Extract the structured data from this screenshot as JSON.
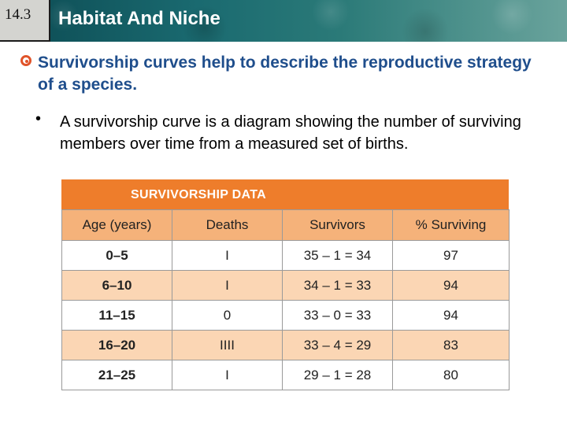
{
  "header": {
    "section_number": "14.3",
    "title": "Habitat And Niche"
  },
  "content": {
    "main_point": "Survivorship curves help to describe the reproductive strategy of a species.",
    "sub_bullet_symbol": "•",
    "sub_point": "A survivorship curve is a diagram showing the number of surviving members over time from a measured set of births."
  },
  "table": {
    "title": "SURVIVORSHIP DATA",
    "columns": [
      "Age (years)",
      "Deaths",
      "Survivors",
      "% Surviving"
    ],
    "rows": [
      [
        "0–5",
        "I",
        "35 – 1 = 34",
        "97"
      ],
      [
        "6–10",
        "I",
        "34 – 1 = 33",
        "94"
      ],
      [
        "11–15",
        "0",
        "33 – 0 = 33",
        "94"
      ],
      [
        "16–20",
        "IIII",
        "33 – 4 = 29",
        "83"
      ],
      [
        "21–25",
        "I",
        "29 – 1 = 28",
        "80"
      ]
    ]
  },
  "colors": {
    "header_bg": "#1a6a70",
    "title_text": "#ffffff",
    "main_point_text": "#1f4e8c",
    "bullet_accent": "#e0542a",
    "table_title_bg": "#ee7d2b",
    "table_header_bg": "#f5b27a",
    "table_alt_row_bg": "#fbd6b4"
  }
}
